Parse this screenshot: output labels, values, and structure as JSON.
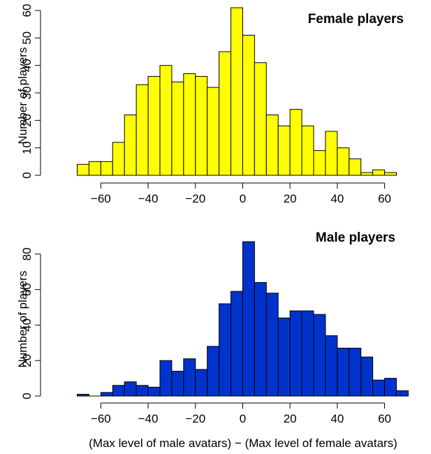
{
  "chart_data": [
    {
      "type": "bar",
      "title": "Female players",
      "ylabel": "Number of players",
      "xlabel": "",
      "bin_width": 5,
      "x_start": -70,
      "xlim": [
        -70,
        65
      ],
      "ylim": [
        0,
        60
      ],
      "x_ticks": [
        -60,
        -40,
        -20,
        0,
        20,
        40,
        60
      ],
      "y_ticks": [
        0,
        10,
        20,
        30,
        40,
        50,
        60
      ],
      "values": [
        4,
        5,
        5,
        12,
        22,
        33,
        36,
        40,
        34,
        37,
        36,
        32,
        45,
        61,
        51,
        41,
        22,
        18,
        24,
        18,
        9,
        16,
        10,
        6,
        1,
        2,
        1
      ],
      "bar_color": "#ffff00",
      "grid": false
    },
    {
      "type": "bar",
      "title": "Male players",
      "ylabel": "Number of players",
      "xlabel": "(Max level of male avatars) − (Max level of female avatars)",
      "bin_width": 5,
      "x_start": -70,
      "xlim": [
        -70,
        70
      ],
      "ylim": [
        0,
        87
      ],
      "x_ticks": [
        -60,
        -40,
        -20,
        0,
        20,
        40,
        60
      ],
      "y_ticks": [
        0,
        20,
        40,
        60,
        80
      ],
      "values": [
        1,
        0,
        2,
        6,
        8,
        6,
        5,
        20,
        14,
        21,
        15,
        28,
        52,
        59,
        87,
        64,
        58,
        44,
        48,
        48,
        46,
        34,
        27,
        27,
        22,
        9,
        10,
        3
      ],
      "bar_color": "#0033cc",
      "grid": false
    }
  ]
}
